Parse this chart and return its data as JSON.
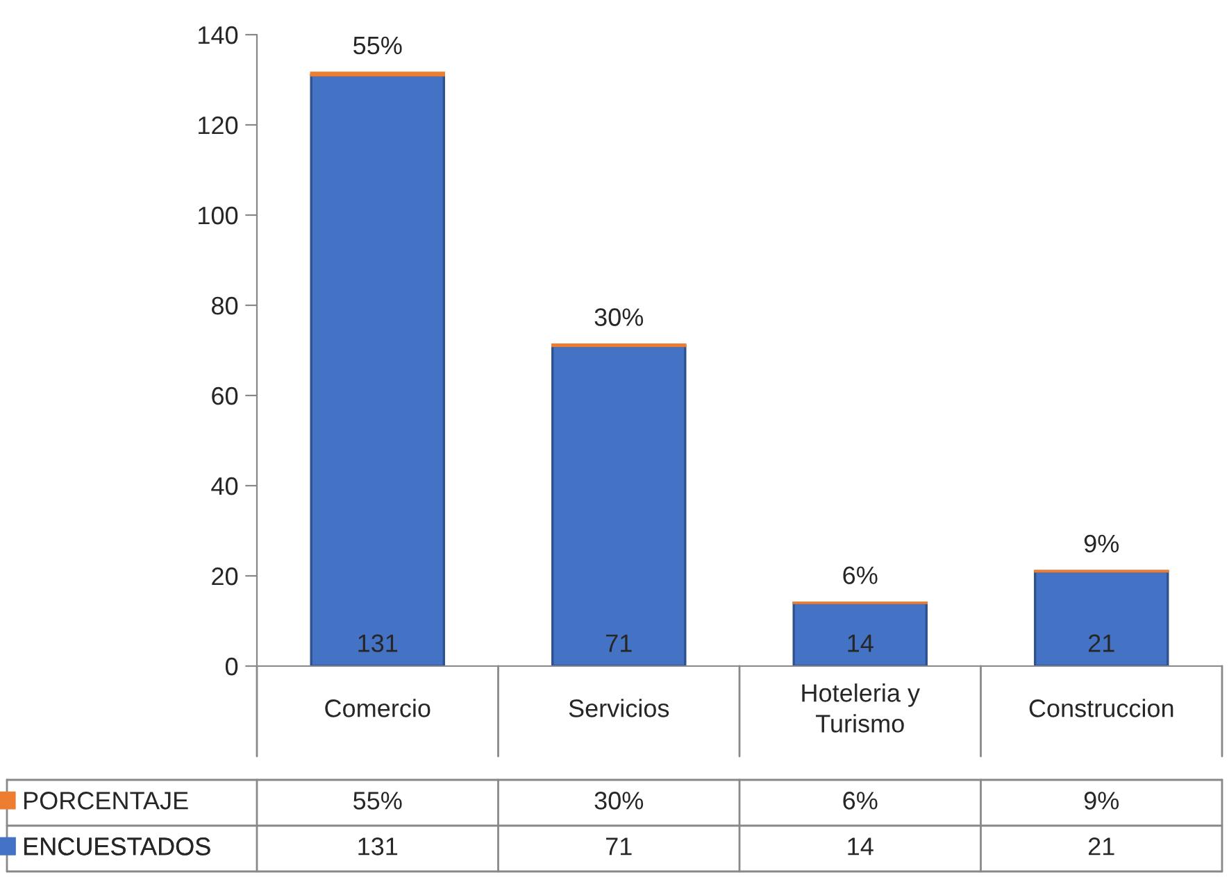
{
  "chart_data": {
    "type": "bar",
    "stacked": true,
    "categories": [
      "Comercio",
      "Servicios",
      "Hoteleria y\nTurismo",
      "Construccion"
    ],
    "series": [
      {
        "name": "ENCUESTADOS",
        "color": "#4472c4",
        "values": [
          131,
          71,
          14,
          21
        ],
        "value_labels": [
          "131",
          "71",
          "14",
          "21"
        ]
      },
      {
        "name": "PORCENTAJE",
        "color": "#ed7d31",
        "values": [
          0.55,
          0.3,
          0.06,
          0.09
        ],
        "value_labels": [
          "55%",
          "30%",
          "6%",
          "9%"
        ]
      }
    ],
    "ylim": [
      0,
      140
    ],
    "yticks": [
      0,
      20,
      40,
      60,
      80,
      100,
      120,
      140
    ],
    "grid": false,
    "legend": "bottom left"
  }
}
